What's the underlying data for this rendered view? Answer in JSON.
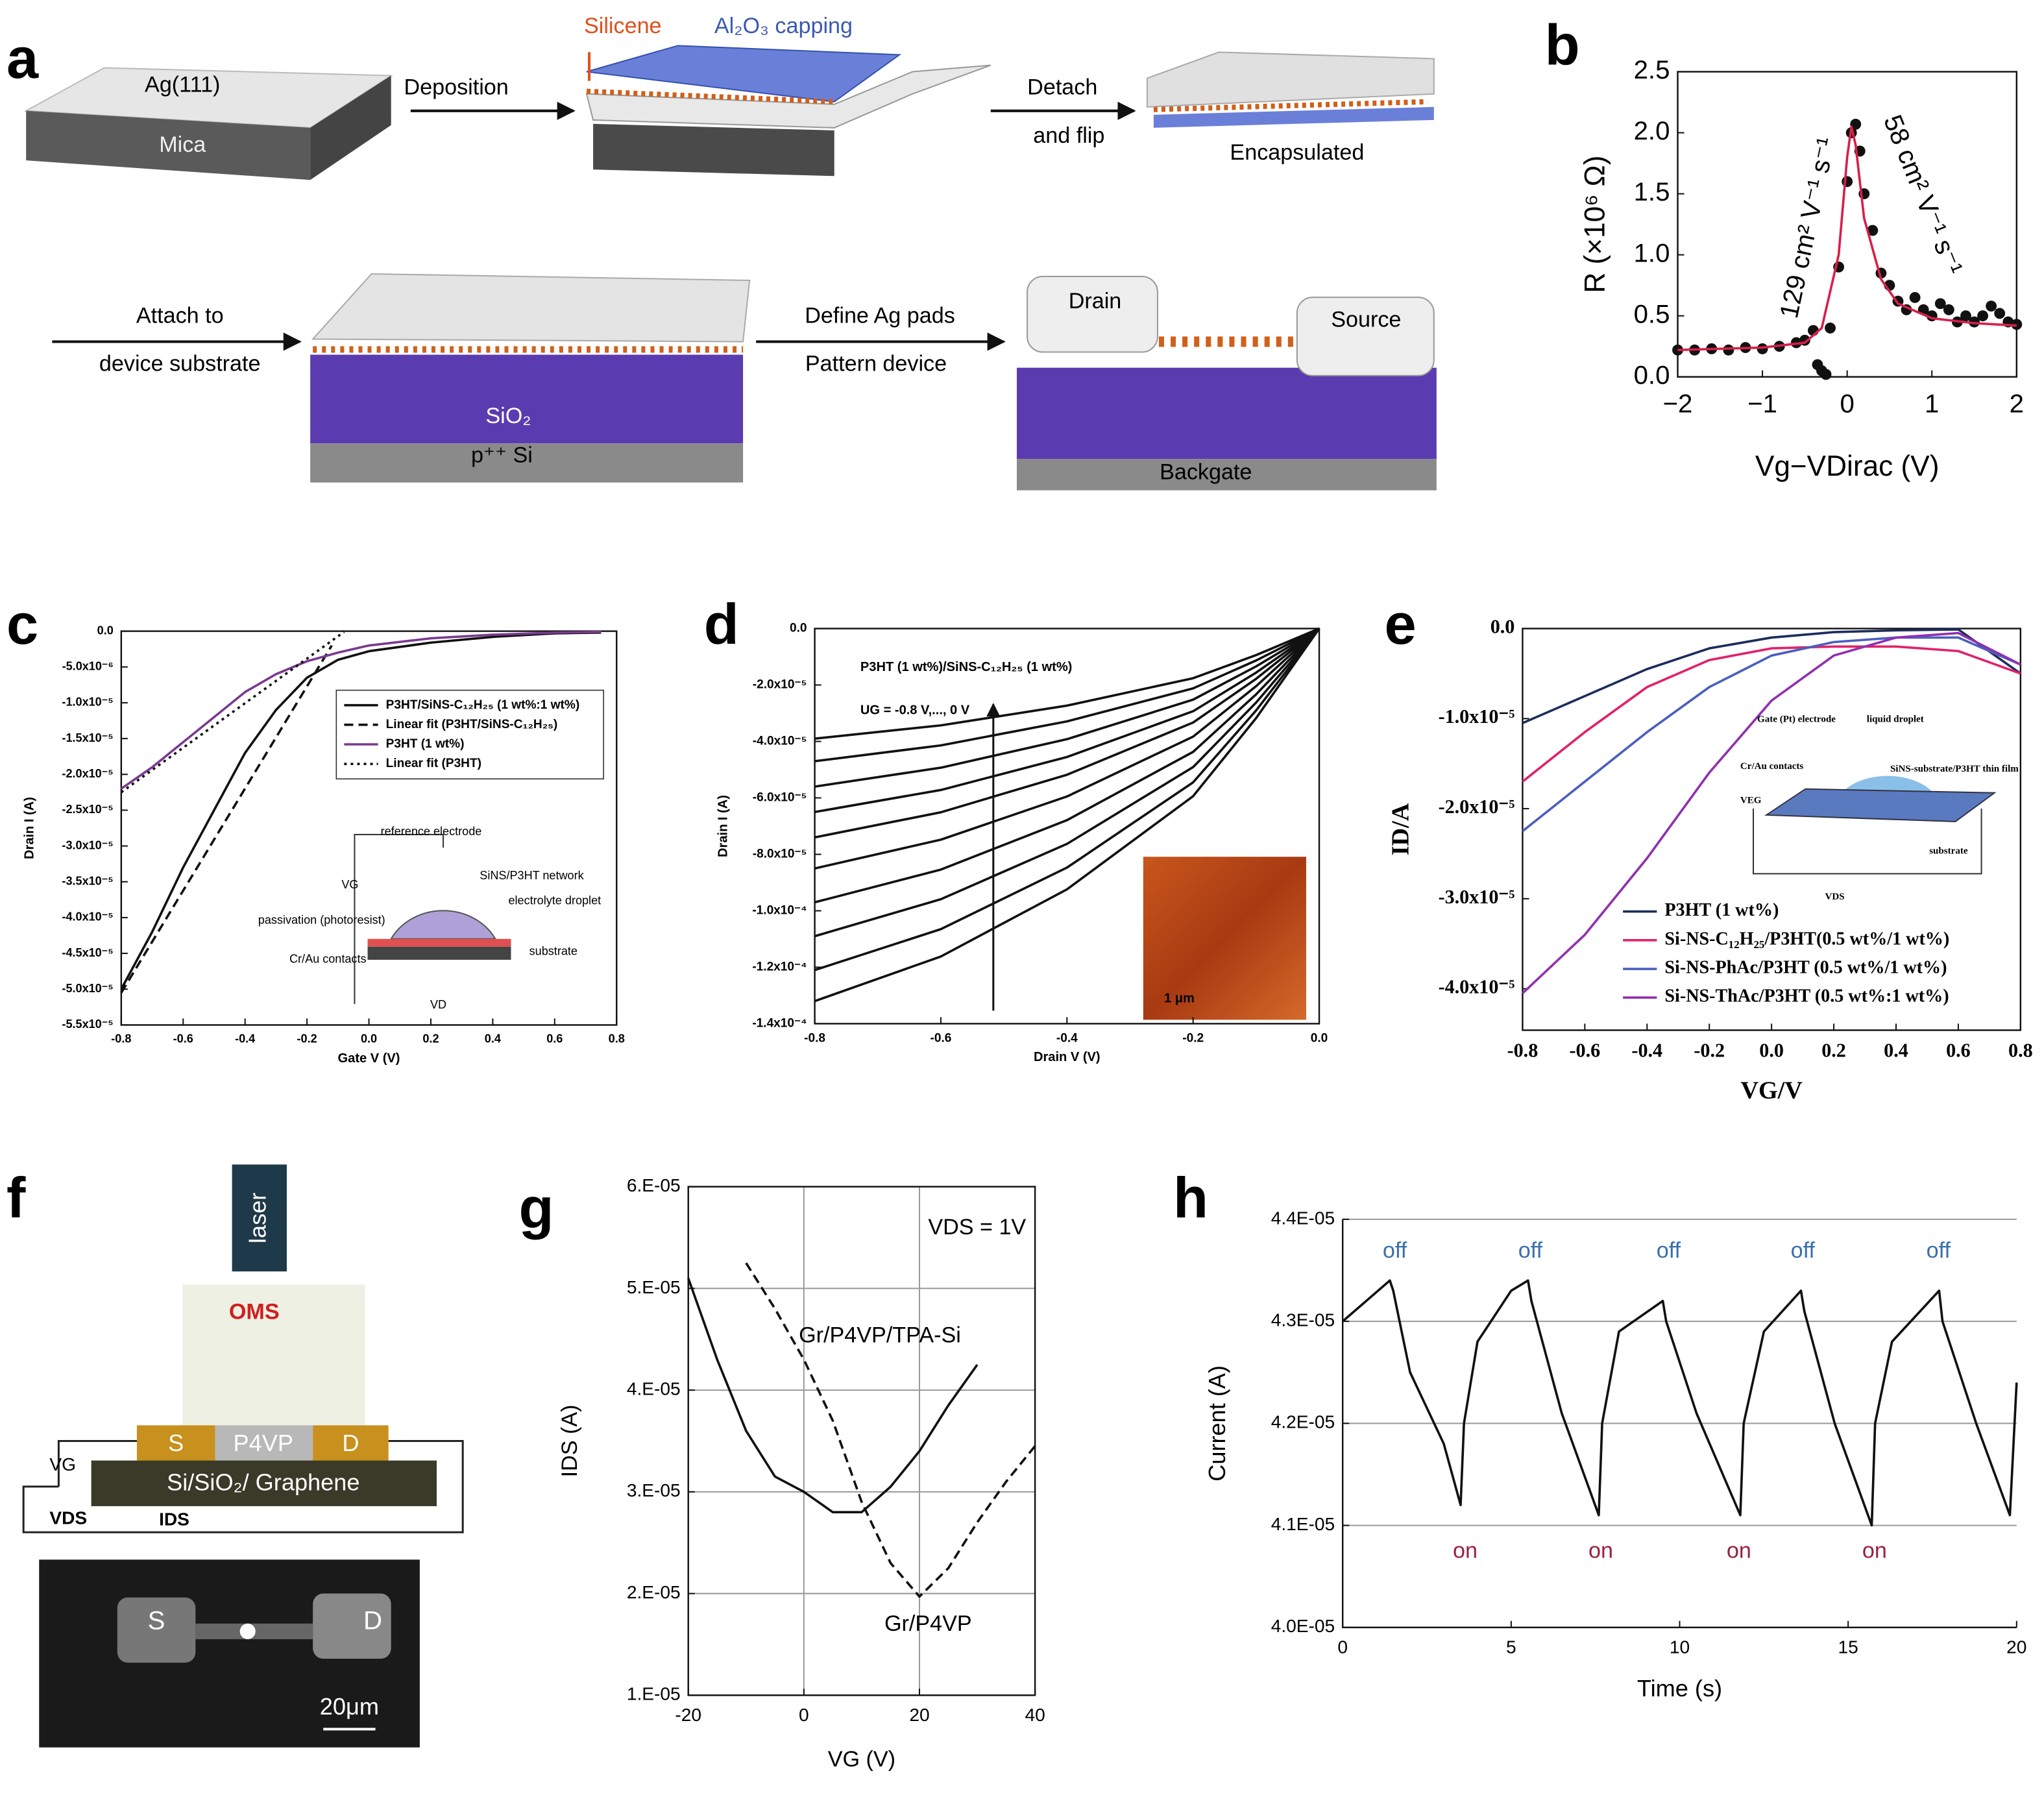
{
  "panel_labels": [
    "a",
    "b",
    "c",
    "d",
    "e",
    "f",
    "g",
    "h"
  ],
  "diagram_a": {
    "labels": [
      "Ag(111)",
      "Mica",
      "Deposition",
      "Silicene",
      "Al₂O₃ capping",
      "Detach",
      "and flip",
      "Encapsulated",
      "Attach to",
      "device substrate",
      "SiO₂",
      "p⁺⁺ Si",
      "Define Ag pads",
      "Pattern device",
      "Drain",
      "Source",
      "Backgate"
    ]
  },
  "diagram_f": {
    "labels": [
      "laser",
      "OMS",
      "S",
      "P4VP",
      "D",
      "Si/SiO₂/ Graphene",
      "VG",
      "VDS",
      "IDS",
      "S",
      "D",
      "20μm"
    ]
  },
  "chart_data": [
    {
      "type": "line",
      "xlabel": "Vg−VDirac (V)",
      "ylabel": "R (×10⁶ Ω)",
      "xlim": [
        -2,
        2
      ],
      "xticks": [
        {
          "value": -2,
          "label": "−2"
        },
        {
          "value": -1,
          "label": "−1"
        },
        0,
        1,
        2
      ],
      "ylim": [
        0,
        2.5
      ],
      "yticks": [
        {
          "value": 0,
          "label": "0.0"
        },
        0.5,
        {
          "value": 1,
          "label": "1.0"
        },
        1.5,
        {
          "value": 2,
          "label": "2.0"
        },
        2.5
      ],
      "annotations": [
        "129 cm² V⁻¹ s⁻¹",
        "58 cm² V⁻¹ s⁻¹"
      ],
      "series": [
        {
          "color": "#111111",
          "style": "dots",
          "x": [
            -2,
            -1.8,
            -1.6,
            -1.4,
            -1.2,
            -1,
            -0.8,
            -0.6,
            -0.5,
            -0.4,
            -0.35,
            -0.3,
            -0.25,
            -0.2,
            -0.1,
            0,
            0.05,
            0.1,
            0.15,
            0.2,
            0.3,
            0.4,
            0.5,
            0.6,
            0.7,
            0.8,
            0.9,
            1,
            1.1,
            1.2,
            1.3,
            1.4,
            1.5,
            1.6,
            1.7,
            1.8,
            1.9,
            2
          ],
          "values": [
            0.22,
            0.22,
            0.23,
            0.22,
            0.24,
            0.23,
            0.25,
            0.28,
            0.3,
            0.38,
            0.1,
            0.05,
            0.02,
            0.4,
            0.9,
            1.6,
            2.0,
            2.07,
            1.85,
            1.5,
            1.2,
            0.85,
            0.75,
            0.62,
            0.55,
            0.65,
            0.55,
            0.5,
            0.6,
            0.55,
            0.45,
            0.5,
            0.45,
            0.5,
            0.58,
            0.52,
            0.45,
            0.43
          ]
        },
        {
          "color": "#d6204a",
          "style": "solid",
          "x": [
            -2,
            -1,
            -0.5,
            -0.3,
            -0.1,
            0,
            0.05,
            0.1,
            0.2,
            0.4,
            0.6,
            1,
            1.5,
            2
          ],
          "values": [
            0.22,
            0.24,
            0.28,
            0.4,
            1.0,
            1.8,
            2.05,
            1.9,
            1.3,
            0.8,
            0.6,
            0.48,
            0.44,
            0.42
          ]
        }
      ]
    },
    {
      "type": "line",
      "xlabel": "Gate V (V)",
      "ylabel": "Drain I (A)",
      "legend": "upper right",
      "xlim": [
        -0.8,
        0.8
      ],
      "xticks": [
        -0.8,
        -0.6,
        -0.4,
        -0.2,
        {
          "value": 0,
          "label": "0.0"
        },
        0.2,
        0.4,
        0.6,
        0.8
      ],
      "ylim": [
        -5.5e-05,
        0
      ],
      "yticks": [
        {
          "value": 0,
          "label": "0.0"
        },
        {
          "value": -5e-06,
          "label": "-5.0x10⁻⁶"
        },
        {
          "value": -1e-05,
          "label": "-1.0x10⁻⁵"
        },
        {
          "value": -1.5e-05,
          "label": "-1.5x10⁻⁵"
        },
        {
          "value": -2e-05,
          "label": "-2.0x10⁻⁵"
        },
        {
          "value": -2.5e-05,
          "label": "-2.5x10⁻⁵"
        },
        {
          "value": -3e-05,
          "label": "-3.0x10⁻⁵"
        },
        {
          "value": -3.5e-05,
          "label": "-3.5x10⁻⁵"
        },
        {
          "value": -4e-05,
          "label": "-4.0x10⁻⁵"
        },
        {
          "value": -4.5e-05,
          "label": "-4.5x10⁻⁵"
        },
        {
          "value": -5e-05,
          "label": "-5.0x10⁻⁵"
        },
        {
          "value": -5.5e-05,
          "label": "-5.5x10⁻⁵"
        }
      ],
      "annotations": [
        "reference electrode",
        "SiNS/P3HT network",
        "passivation (photoresist)",
        "electrolyte droplet",
        "Cr/Au contacts",
        "substrate",
        "VG",
        "VD"
      ],
      "series": [
        {
          "name": "P3HT/SiNS-C₁₂H₂₅ (1 wt%:1 wt%)",
          "color": "#111111",
          "style": "solid",
          "x": [
            -0.8,
            -0.7,
            -0.6,
            -0.5,
            -0.4,
            -0.3,
            -0.2,
            -0.1,
            0,
            0.2,
            0.4,
            0.6,
            0.75
          ],
          "values": [
            -5e-05,
            -4.2e-05,
            -3.3e-05,
            -2.5e-05,
            -1.7e-05,
            -1.1e-05,
            -6.5e-06,
            -4e-06,
            -2.8e-06,
            -1.6e-06,
            -8e-07,
            -3e-07,
            -2e-07
          ]
        },
        {
          "name": "Linear fit (P3HT/SiNS-C₁₂H₂₅)",
          "color": "#111111",
          "style": "dashed",
          "x": [
            -0.8,
            -0.12
          ],
          "values": [
            -5.05e-05,
            -2e-06
          ]
        },
        {
          "name": "P3HT (1 wt%)",
          "color": "#7a3a90",
          "style": "solid",
          "x": [
            -0.8,
            -0.7,
            -0.6,
            -0.5,
            -0.4,
            -0.3,
            -0.2,
            -0.1,
            0,
            0.2,
            0.4,
            0.6,
            0.75
          ],
          "values": [
            -2.2e-05,
            -1.9e-05,
            -1.55e-05,
            -1.2e-05,
            -8.5e-06,
            -6e-06,
            -4.2e-06,
            -3e-06,
            -2e-06,
            -1e-06,
            -5e-07,
            -2e-07,
            -1e-07
          ]
        },
        {
          "name": "Linear fit (P3HT)",
          "color": "#111111",
          "style": "dotted",
          "x": [
            -0.8,
            -0.08
          ],
          "values": [
            -2.25e-05,
            -1e-07
          ]
        }
      ]
    },
    {
      "type": "line",
      "xlabel": "Drain V (V)",
      "ylabel": "Drain I (A)",
      "xlim": [
        -0.8,
        0
      ],
      "xticks": [
        -0.8,
        -0.6,
        -0.4,
        -0.2,
        {
          "value": 0,
          "label": "0.0"
        }
      ],
      "ylim": [
        -0.00014,
        0
      ],
      "yticks": [
        {
          "value": 0,
          "label": "0.0"
        },
        {
          "value": -2e-05,
          "label": "-2.0x10⁻⁵"
        },
        {
          "value": -4e-05,
          "label": "-4.0x10⁻⁵"
        },
        {
          "value": -6e-05,
          "label": "-6.0x10⁻⁵"
        },
        {
          "value": -8e-05,
          "label": "-8.0x10⁻⁵"
        },
        {
          "value": -0.0001,
          "label": "-1.0x10⁻⁴"
        },
        {
          "value": -0.00012,
          "label": "-1.2x10⁻⁴"
        },
        {
          "value": -0.00014,
          "label": "-1.4x10⁻⁴"
        }
      ],
      "annotations": [
        "P3HT (1 wt%)/SiNS-C₁₂H₂₅ (1 wt%)",
        "UG = -0.8 V,..., 0 V",
        "1 μm"
      ],
      "x": [
        -0.8,
        -0.6,
        -0.4,
        -0.2,
        -0.1,
        0
      ],
      "series": [
        {
          "color": "#111111",
          "style": "solid",
          "values": [
            -3.9e-05,
            -3.43e-05,
            -2.73e-05,
            -1.76e-05,
            -9.4e-06,
            0
          ]
        },
        {
          "color": "#111111",
          "style": "solid",
          "values": [
            -4.7e-05,
            -4.14e-05,
            -3.29e-05,
            -2.12e-05,
            -1.13e-05,
            0
          ]
        },
        {
          "color": "#111111",
          "style": "solid",
          "values": [
            -5.6e-05,
            -4.93e-05,
            -3.92e-05,
            -2.52e-05,
            -1.34e-05,
            0
          ]
        },
        {
          "color": "#111111",
          "style": "solid",
          "values": [
            -6.5e-05,
            -5.72e-05,
            -4.55e-05,
            -2.93e-05,
            -1.56e-05,
            0
          ]
        },
        {
          "color": "#111111",
          "style": "solid",
          "values": [
            -7.4e-05,
            -6.51e-05,
            -5.18e-05,
            -3.33e-05,
            -1.78e-05,
            0
          ]
        },
        {
          "color": "#111111",
          "style": "solid",
          "values": [
            -8.5e-05,
            -7.48e-05,
            -5.95e-05,
            -3.83e-05,
            -2.04e-05,
            0
          ]
        },
        {
          "color": "#111111",
          "style": "solid",
          "values": [
            -9.7e-05,
            -8.54e-05,
            -6.79e-05,
            -4.37e-05,
            -2.33e-05,
            0
          ]
        },
        {
          "color": "#111111",
          "style": "solid",
          "values": [
            -0.000109,
            -9.59e-05,
            -7.63e-05,
            -4.91e-05,
            -2.62e-05,
            0
          ]
        },
        {
          "color": "#111111",
          "style": "solid",
          "values": [
            -0.000121,
            -0.0001065,
            -8.47e-05,
            -5.45e-05,
            -2.9e-05,
            0
          ]
        },
        {
          "color": "#111111",
          "style": "solid",
          "values": [
            -0.000132,
            -0.0001162,
            -9.24e-05,
            -5.94e-05,
            -3.17e-05,
            0
          ]
        }
      ]
    },
    {
      "type": "line",
      "xlabel": "VG/V",
      "ylabel": "ID/A",
      "legend": "lower center",
      "xlim": [
        -0.8,
        0.8
      ],
      "xticks": [
        -0.8,
        -0.6,
        -0.4,
        -0.2,
        {
          "value": 0,
          "label": "0.0"
        },
        0.2,
        0.4,
        0.6,
        0.8
      ],
      "ylim": [
        -4.46e-05,
        0
      ],
      "yticks": [
        {
          "value": 0,
          "label": "0.0"
        },
        {
          "value": -1e-05,
          "label": "-1.0x10⁻⁵"
        },
        {
          "value": -2e-05,
          "label": "-2.0x10⁻⁵"
        },
        {
          "value": -3e-05,
          "label": "-3.0x10⁻⁵"
        },
        {
          "value": -4e-05,
          "label": "-4.0x10⁻⁵"
        }
      ],
      "annotations": [
        "Gate (Pt) electrode",
        "liquid droplet",
        "Cr/Au contacts",
        "SiNS-substrate/P3HT thin film",
        "substrate",
        "VEG",
        "VDS"
      ],
      "x": [
        -0.8,
        -0.6,
        -0.4,
        -0.2,
        0,
        0.2,
        0.4,
        0.6,
        0.8
      ],
      "series": [
        {
          "name": "P3HT (1 wt%)",
          "color": "#1c2c5c",
          "style": "solid",
          "values": [
            -1.05e-05,
            -7.5e-06,
            -4.5e-06,
            -2.2e-06,
            -1e-06,
            -4e-07,
            -2e-07,
            -1e-07,
            -5e-06
          ]
        },
        {
          "name": "Si-NS-C₁₂H₂₅/P3HT(0.5 wt%/1 wt%)",
          "color": "#e0226a",
          "style": "solid",
          "values": [
            -1.7e-05,
            -1.15e-05,
            -6.5e-06,
            -3.5e-06,
            -2.2e-06,
            -2e-06,
            -2e-06,
            -2.5e-06,
            -5e-06
          ]
        },
        {
          "name": "Si-NS-PhAc/P3HT (0.5 wt%/1 wt%)",
          "color": "#4a5fc0",
          "style": "solid",
          "values": [
            -2.25e-05,
            -1.7e-05,
            -1.15e-05,
            -6.5e-06,
            -3e-06,
            -1.5e-06,
            -1e-06,
            -1e-06,
            -4e-06
          ]
        },
        {
          "name": "Si-NS-ThAc/P3HT (0.5 wt%:1 wt%)",
          "color": "#9030b0",
          "style": "solid",
          "values": [
            -4.05e-05,
            -3.4e-05,
            -2.55e-05,
            -1.6e-05,
            -8e-06,
            -3e-06,
            -1e-06,
            -5e-07,
            -4e-06
          ]
        }
      ]
    },
    {
      "type": "line",
      "xlabel": "VG (V)",
      "ylabel": "IDS (A)",
      "grid": "both",
      "legend": "direct",
      "xlim": [
        -20,
        40
      ],
      "xticks": [
        -20,
        0,
        20,
        40
      ],
      "ylim": [
        1e-05,
        6e-05
      ],
      "yticks": [
        {
          "value": 1e-05,
          "label": "1.E-05"
        },
        {
          "value": 2e-05,
          "label": "2.E-05"
        },
        {
          "value": 3e-05,
          "label": "3.E-05"
        },
        {
          "value": 4e-05,
          "label": "4.E-05"
        },
        {
          "value": 5e-05,
          "label": "5.E-05"
        },
        {
          "value": 6e-05,
          "label": "6.E-05"
        }
      ],
      "annotations": [
        "VDS = 1V"
      ],
      "series": [
        {
          "name": "Gr/P4VP/TPA-Si",
          "color": "#111111",
          "style": "solid",
          "x": [
            -20,
            -15,
            -10,
            -5,
            0,
            5,
            10,
            15,
            20,
            25,
            30
          ],
          "values": [
            5.1e-05,
            4.3e-05,
            3.6e-05,
            3.15e-05,
            3e-05,
            2.8e-05,
            2.8e-05,
            3.05e-05,
            3.4e-05,
            3.85e-05,
            4.25e-05
          ]
        },
        {
          "name": "Gr/P4VP",
          "color": "#111111",
          "style": "dashed",
          "x": [
            -10,
            -5,
            0,
            5,
            10,
            15,
            20,
            25,
            30,
            35,
            40
          ],
          "values": [
            5.25e-05,
            4.8e-05,
            4.3e-05,
            3.7e-05,
            2.9e-05,
            2.3e-05,
            1.97e-05,
            2.25e-05,
            2.7e-05,
            3.1e-05,
            3.45e-05
          ]
        }
      ]
    },
    {
      "type": "line",
      "xlabel": "Time (s)",
      "ylabel": "Current (A)",
      "grid": "y",
      "xlim": [
        0,
        20
      ],
      "xticks": [
        0,
        5,
        10,
        15,
        20
      ],
      "ylim": [
        4e-05,
        4.4e-05
      ],
      "yticks": [
        {
          "value": 4e-05,
          "label": "4.0E-05"
        },
        {
          "value": 4.1e-05,
          "label": "4.1E-05"
        },
        {
          "value": 4.2e-05,
          "label": "4.2E-05"
        },
        {
          "value": 4.3e-05,
          "label": "4.3E-05"
        },
        {
          "value": 4.4e-05,
          "label": "4.4E-05"
        }
      ],
      "annotations": [
        "off",
        "off",
        "off",
        "off",
        "off",
        "on",
        "on",
        "on",
        "on"
      ],
      "series": [
        {
          "color": "#111111",
          "style": "solid",
          "x": [
            0,
            1.4,
            1.5,
            2,
            3,
            3.5,
            3.6,
            4,
            5,
            5.5,
            5.6,
            6.5,
            7.6,
            7.7,
            8.2,
            9.5,
            9.6,
            10.5,
            11.8,
            11.9,
            12.5,
            13.6,
            13.7,
            14.6,
            15.7,
            15.8,
            16.3,
            17.7,
            17.8,
            18.8,
            19.8,
            20
          ],
          "values": [
            4.3e-05,
            4.34e-05,
            4.33e-05,
            4.25e-05,
            4.18e-05,
            4.12e-05,
            4.2e-05,
            4.28e-05,
            4.33e-05,
            4.34e-05,
            4.32e-05,
            4.21e-05,
            4.11e-05,
            4.2e-05,
            4.29e-05,
            4.32e-05,
            4.3e-05,
            4.21e-05,
            4.11e-05,
            4.2e-05,
            4.29e-05,
            4.33e-05,
            4.31e-05,
            4.2e-05,
            4.1e-05,
            4.2e-05,
            4.28e-05,
            4.33e-05,
            4.3e-05,
            4.2e-05,
            4.11e-05,
            4.24e-05
          ]
        }
      ]
    }
  ]
}
